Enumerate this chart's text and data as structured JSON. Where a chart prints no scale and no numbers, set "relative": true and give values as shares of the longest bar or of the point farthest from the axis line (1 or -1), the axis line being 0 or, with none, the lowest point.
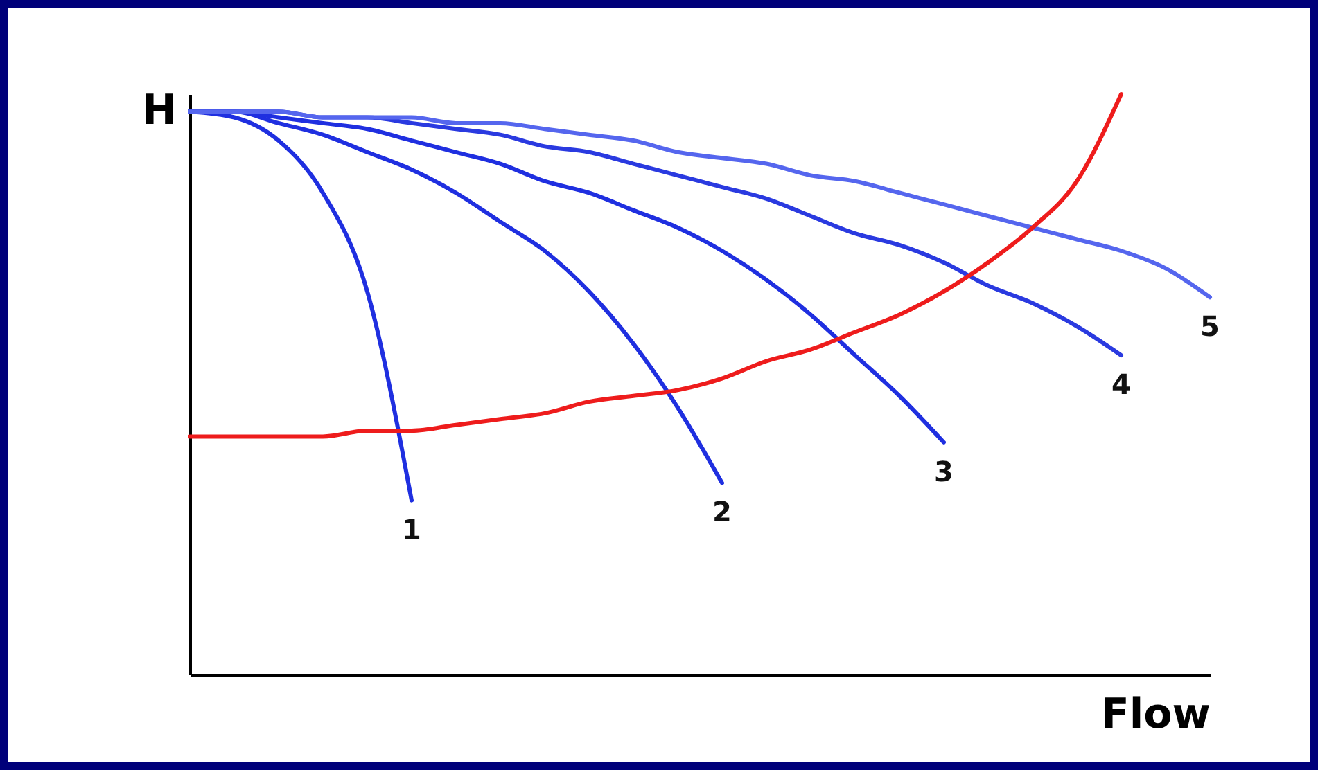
{
  "chart_data": {
    "type": "line",
    "relative": true,
    "xlabel": "Flow",
    "ylabel": "H",
    "categories": [
      null,
      null,
      null,
      null,
      null,
      null,
      null,
      null,
      null,
      null,
      null,
      null,
      null,
      null,
      null,
      null,
      null,
      null,
      null,
      null,
      null,
      null,
      null,
      null
    ],
    "series": [
      {
        "name": "1",
        "color": "#1f2fe0",
        "values": [
          0.97,
          0.96,
          0.92,
          0.83,
          0.66,
          0.3,
          null,
          null,
          null,
          null,
          null,
          null,
          null,
          null,
          null,
          null,
          null,
          null,
          null,
          null,
          null,
          null,
          null,
          null
        ]
      },
      {
        "name": "2",
        "color": "#1f2fe0",
        "values": [
          0.97,
          0.97,
          0.95,
          0.93,
          0.9,
          0.87,
          0.83,
          0.78,
          0.73,
          0.66,
          0.57,
          0.46,
          0.33,
          null,
          null,
          null,
          null,
          null,
          null,
          null,
          null,
          null,
          null,
          null
        ]
      },
      {
        "name": "3",
        "color": "#1f2fe0",
        "values": [
          0.97,
          0.97,
          0.96,
          0.95,
          0.94,
          0.92,
          0.9,
          0.88,
          0.85,
          0.83,
          0.8,
          0.77,
          0.73,
          0.68,
          0.62,
          0.55,
          0.48,
          0.4,
          null,
          null,
          null,
          null,
          null,
          null
        ]
      },
      {
        "name": "4",
        "color": "#2a3ae0",
        "values": [
          0.97,
          0.97,
          0.97,
          0.96,
          0.96,
          0.95,
          0.94,
          0.93,
          0.91,
          0.9,
          0.88,
          0.86,
          0.84,
          0.82,
          0.79,
          0.76,
          0.74,
          0.71,
          0.67,
          0.64,
          0.6,
          0.55,
          null,
          null
        ]
      },
      {
        "name": "5",
        "color": "#5566ee",
        "values": [
          0.97,
          0.97,
          0.97,
          0.96,
          0.96,
          0.96,
          0.95,
          0.95,
          0.94,
          0.93,
          0.92,
          0.9,
          0.89,
          0.88,
          0.86,
          0.85,
          0.83,
          0.81,
          0.79,
          0.77,
          0.75,
          0.73,
          0.7,
          0.65
        ]
      },
      {
        "color": "#ee1c1c",
        "values": [
          0.41,
          0.41,
          0.41,
          0.41,
          0.42,
          0.42,
          0.43,
          0.44,
          0.45,
          0.47,
          0.48,
          0.49,
          0.51,
          0.54,
          0.56,
          0.59,
          0.62,
          0.66,
          0.71,
          0.77,
          0.85,
          1,
          null,
          null
        ]
      }
    ]
  }
}
